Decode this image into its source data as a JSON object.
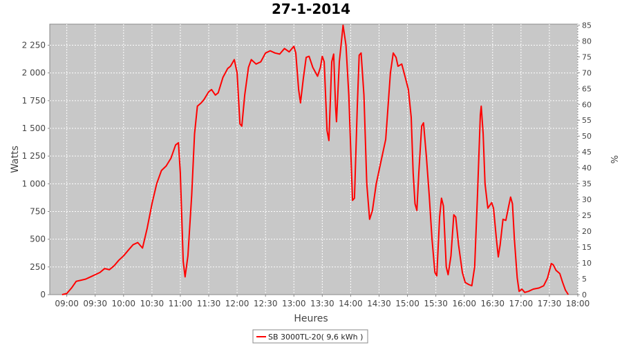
{
  "chart_data": {
    "type": "line",
    "title": "27-1-2014",
    "xlabel": "Heures",
    "ylabel": "Watts",
    "y2label": "%",
    "x": [
      "08:55",
      "09:00",
      "09:05",
      "09:10",
      "09:15",
      "09:20",
      "09:25",
      "09:30",
      "09:35",
      "09:40",
      "09:45",
      "09:50",
      "09:55",
      "10:00",
      "10:05",
      "10:10",
      "10:15",
      "10:20",
      "10:25",
      "10:30",
      "10:35",
      "10:40",
      "10:45",
      "10:50",
      "10:55",
      "10:58",
      "11:00",
      "11:03",
      "11:05",
      "11:08",
      "11:12",
      "11:15",
      "11:18",
      "11:22",
      "11:25",
      "11:30",
      "11:33",
      "11:37",
      "11:40",
      "11:45",
      "11:50",
      "11:53",
      "11:57",
      "12:00",
      "12:03",
      "12:05",
      "12:08",
      "12:12",
      "12:15",
      "12:20",
      "12:25",
      "12:30",
      "12:35",
      "12:40",
      "12:45",
      "12:50",
      "12:55",
      "13:00",
      "13:02",
      "13:05",
      "13:07",
      "13:10",
      "13:13",
      "13:16",
      "13:20",
      "13:25",
      "13:28",
      "13:30",
      "13:32",
      "13:35",
      "13:37",
      "13:40",
      "13:42",
      "13:44",
      "13:45",
      "13:48",
      "13:52",
      "13:55",
      "13:58",
      "14:02",
      "14:04",
      "14:07",
      "14:09",
      "14:11",
      "14:14",
      "14:17",
      "14:20",
      "14:23",
      "14:27",
      "14:32",
      "14:37",
      "14:42",
      "14:45",
      "14:48",
      "14:50",
      "14:54",
      "14:58",
      "15:01",
      "15:04",
      "15:06",
      "15:08",
      "15:10",
      "15:12",
      "15:15",
      "15:17",
      "15:20",
      "15:23",
      "15:26",
      "15:29",
      "15:31",
      "15:34",
      "15:36",
      "15:38",
      "15:41",
      "15:43",
      "15:46",
      "15:49",
      "15:51",
      "15:54",
      "15:58",
      "16:01",
      "16:05",
      "16:08",
      "16:11",
      "16:14",
      "16:17",
      "16:18",
      "16:20",
      "16:22",
      "16:25",
      "16:29",
      "16:31",
      "16:34",
      "16:36",
      "16:38",
      "16:41",
      "16:44",
      "16:47",
      "16:49",
      "16:51",
      "16:53",
      "16:56",
      "16:58",
      "17:01",
      "17:04",
      "17:08",
      "17:13",
      "17:19",
      "17:24",
      "17:28",
      "17:32",
      "17:34",
      "17:37",
      "17:41",
      "17:44",
      "17:47",
      "17:50"
    ],
    "series": [
      {
        "name": "SB 3000TL-20( 9,6 kWh )",
        "color": "#ff0000",
        "values": [
          0,
          10,
          60,
          120,
          130,
          140,
          160,
          180,
          200,
          235,
          225,
          260,
          310,
          350,
          400,
          450,
          470,
          420,
          600,
          820,
          1000,
          1120,
          1160,
          1230,
          1350,
          1370,
          1100,
          300,
          160,
          350,
          900,
          1450,
          1700,
          1730,
          1760,
          1830,
          1850,
          1800,
          1820,
          1960,
          2040,
          2060,
          2120,
          2000,
          1540,
          1520,
          1800,
          2050,
          2120,
          2080,
          2100,
          2180,
          2200,
          2180,
          2170,
          2220,
          2190,
          2240,
          2180,
          1850,
          1730,
          1950,
          2140,
          2150,
          2050,
          1970,
          2050,
          2150,
          2100,
          1480,
          1390,
          2100,
          2170,
          1700,
          1560,
          2100,
          2430,
          2250,
          1800,
          850,
          870,
          1700,
          2160,
          2180,
          1800,
          1000,
          680,
          760,
          1000,
          1200,
          1400,
          2000,
          2180,
          2140,
          2060,
          2080,
          1950,
          1850,
          1600,
          1100,
          820,
          760,
          1100,
          1520,
          1550,
          1250,
          900,
          500,
          200,
          170,
          700,
          870,
          800,
          250,
          180,
          350,
          720,
          700,
          450,
          200,
          110,
          90,
          80,
          250,
          900,
          1620,
          1700,
          1450,
          1000,
          780,
          830,
          780,
          500,
          340,
          450,
          680,
          670,
          800,
          880,
          820,
          500,
          150,
          30,
          50,
          20,
          30,
          50,
          60,
          80,
          150,
          280,
          270,
          220,
          190,
          110,
          40,
          0
        ]
      }
    ],
    "xlim": [
      "08:42",
      "18:00"
    ],
    "xticks": [
      "09:00",
      "09:30",
      "10:00",
      "10:30",
      "11:00",
      "11:30",
      "12:00",
      "12:30",
      "13:00",
      "13:30",
      "14:00",
      "14:30",
      "15:00",
      "15:30",
      "16:00",
      "16:30",
      "17:00",
      "17:30",
      "18:00"
    ],
    "ylim": [
      0,
      2440
    ],
    "yticks": [
      0,
      250,
      500,
      750,
      {
        "value": 1000,
        "label": "1 000"
      },
      {
        "value": 1250,
        "label": "1 250"
      },
      {
        "value": 1500,
        "label": "1 500"
      },
      {
        "value": 1750,
        "label": "1 750"
      },
      {
        "value": 2000,
        "label": "2 000"
      },
      {
        "value": 2250,
        "label": "2 250"
      }
    ],
    "y2lim": [
      0,
      85.3
    ],
    "y2ticks": [
      0,
      5,
      10,
      15,
      20,
      25,
      30,
      35,
      40,
      45,
      50,
      55,
      60,
      65,
      70,
      75,
      80,
      85
    ],
    "grid": true
  }
}
